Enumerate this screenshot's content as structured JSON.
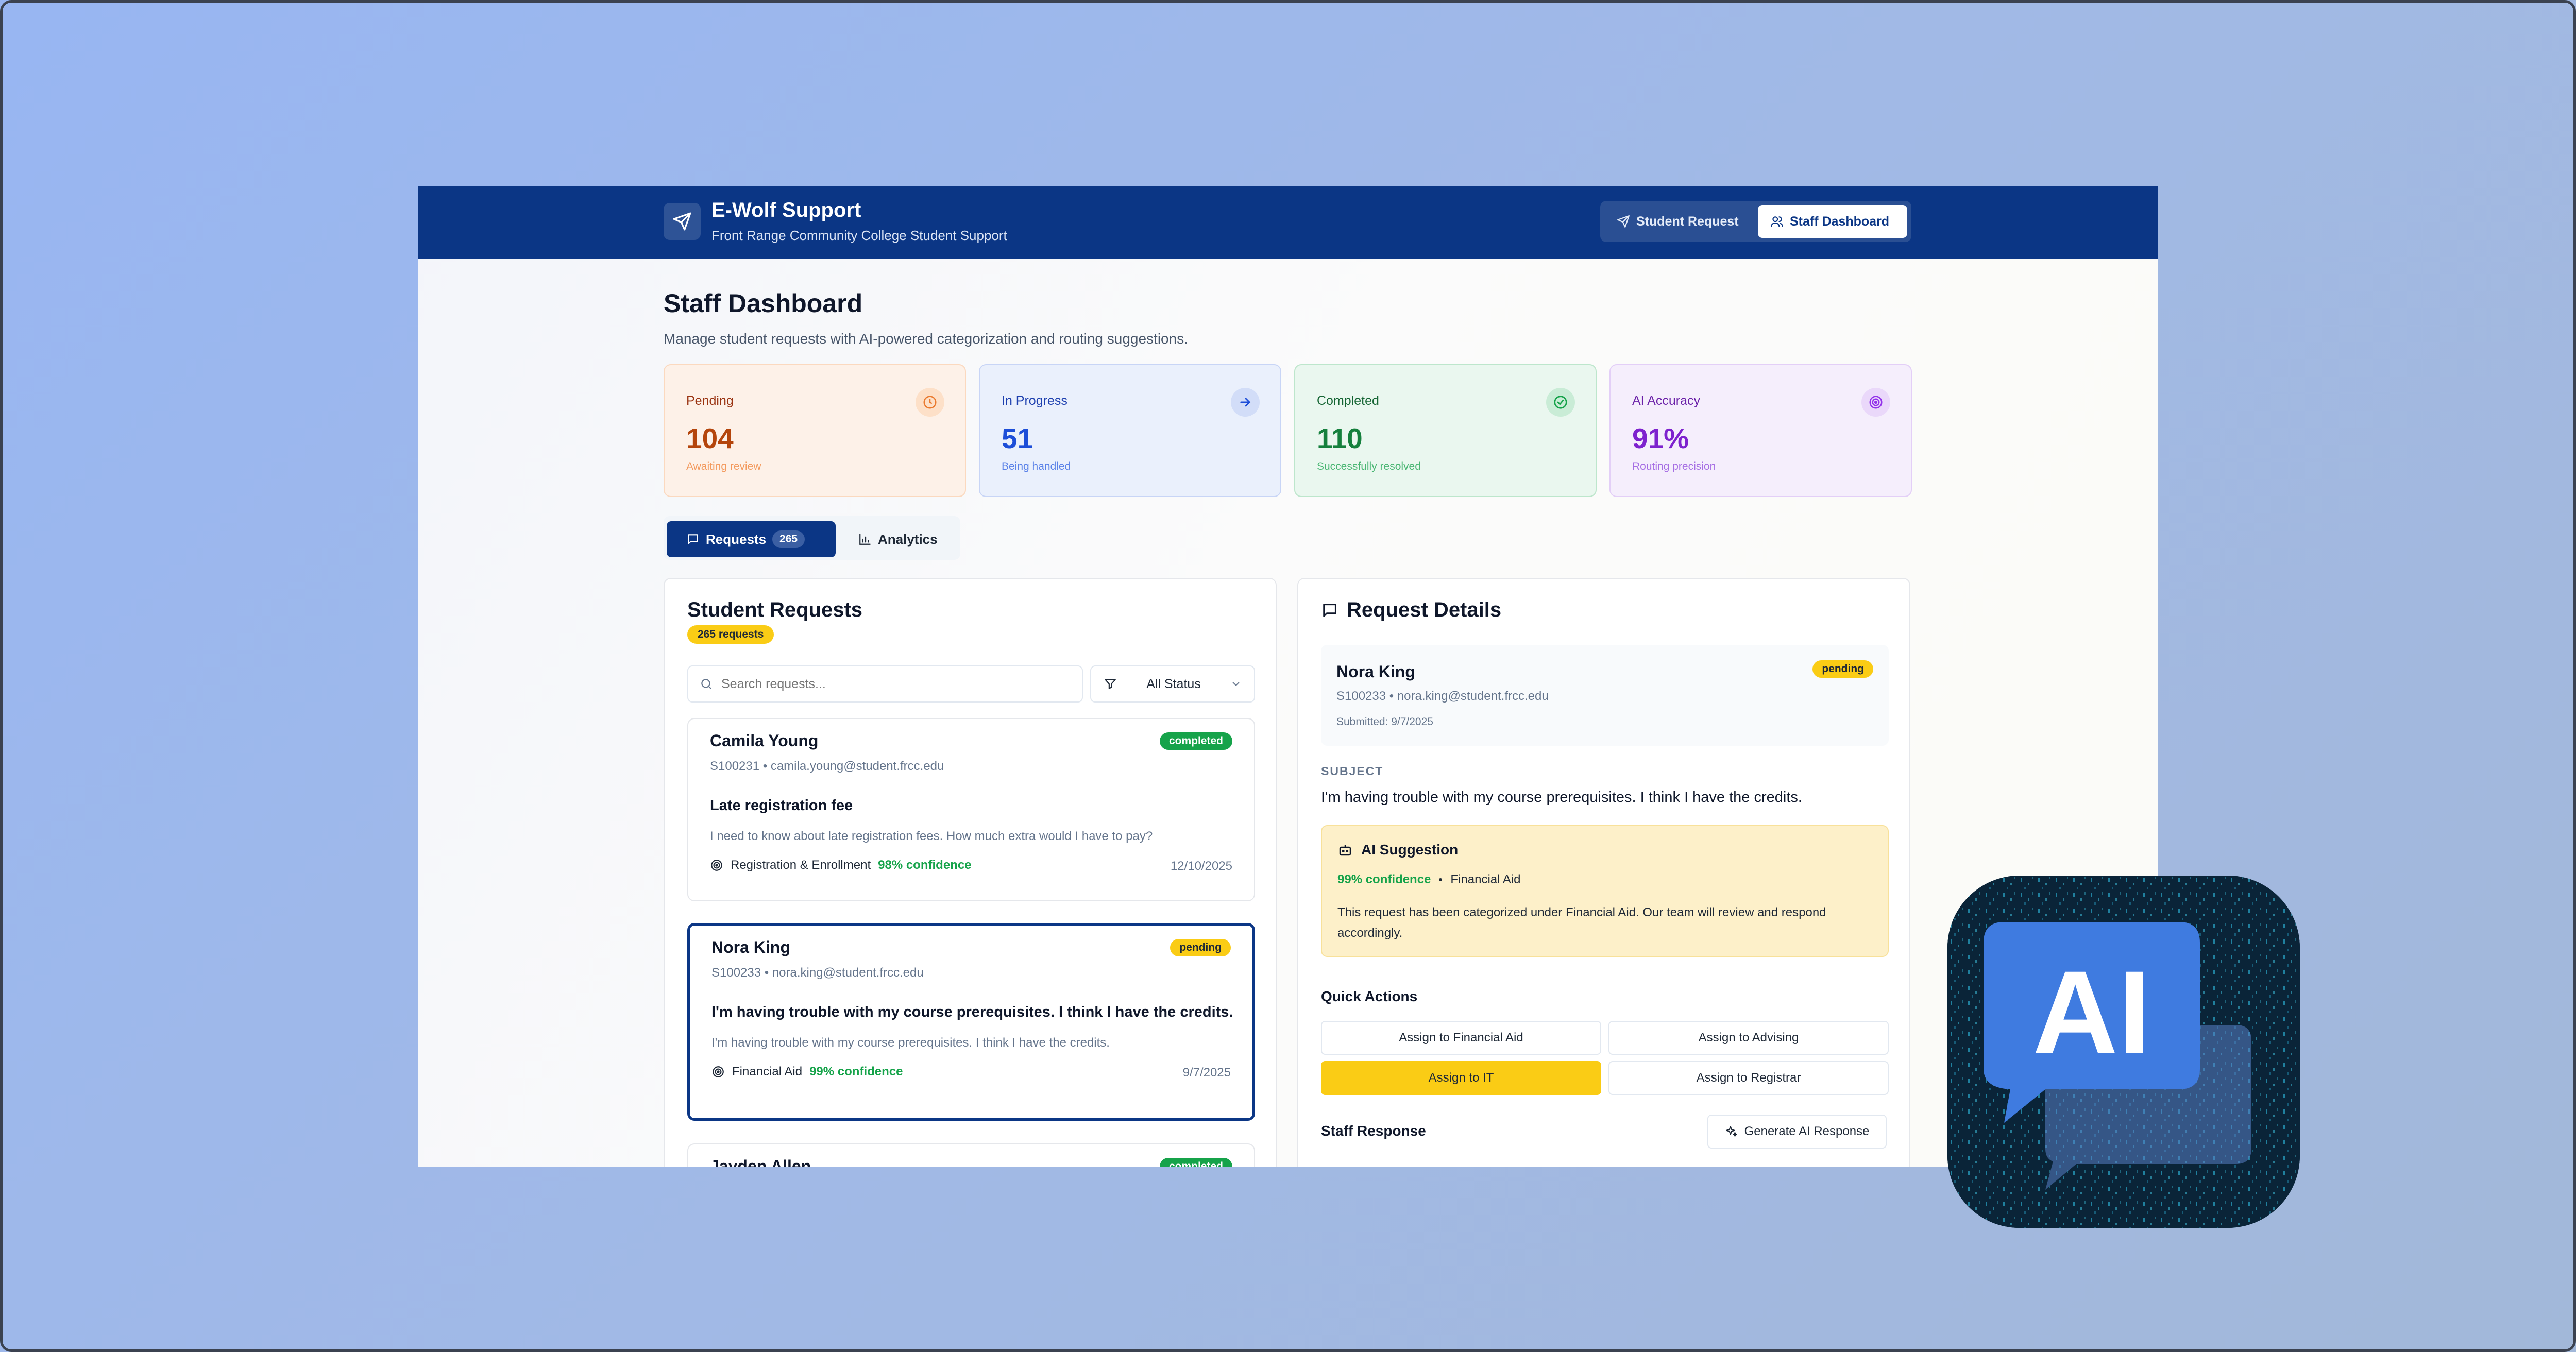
{
  "header": {
    "title": "E-Wolf Support",
    "subtitle": "Front Range Community College Student Support",
    "nav": {
      "student_request": "Student Request",
      "staff_dashboard": "Staff Dashboard"
    }
  },
  "page": {
    "title": "Staff Dashboard",
    "subtitle": "Manage student requests with AI-powered categorization and routing suggestions."
  },
  "stats": {
    "pending": {
      "label": "Pending",
      "value": "104",
      "note": "Awaiting review"
    },
    "in_progress": {
      "label": "In Progress",
      "value": "51",
      "note": "Being handled"
    },
    "completed": {
      "label": "Completed",
      "value": "110",
      "note": "Successfully resolved"
    },
    "ai_accuracy": {
      "label": "AI Accuracy",
      "value": "91%",
      "note": "Routing precision"
    }
  },
  "tabs": {
    "requests": "Requests",
    "requests_count": "265",
    "analytics": "Analytics"
  },
  "requests_panel": {
    "title": "Student Requests",
    "count_badge": "265 requests",
    "search_placeholder": "Search requests...",
    "status_filter": "All Status",
    "items": [
      {
        "name": "Camila Young",
        "id_email": "S100231 • camila.young@student.frcc.edu",
        "status": "completed",
        "subject": "Late registration fee",
        "body": "I need to know about late registration fees. How much extra would I have to pay?",
        "category": "Registration & Enrollment",
        "confidence": "98% confidence",
        "date": "12/10/2025"
      },
      {
        "name": "Nora King",
        "id_email": "S100233 • nora.king@student.frcc.edu",
        "status": "pending",
        "subject": "I'm having trouble with my course prerequisites. I think I have the credits.",
        "body": "I'm having trouble with my course prerequisites. I think I have the credits.",
        "category": "Financial Aid",
        "confidence": "99% confidence",
        "date": "9/7/2025"
      },
      {
        "name": "Jayden Allen",
        "status": "completed"
      }
    ]
  },
  "details_panel": {
    "title": "Request Details",
    "name": "Nora King",
    "id_email": "S100233 • nora.king@student.frcc.edu",
    "submitted": "Submitted: 9/7/2025",
    "status": "pending",
    "subject_label": "SUBJECT",
    "subject": "I'm having trouble with my course prerequisites. I think I have the credits.",
    "ai_suggestion": {
      "title": "AI Suggestion",
      "confidence": "99% confidence",
      "category": "Financial Aid",
      "text": "This request has been categorized under Financial Aid. Our team will review and respond accordingly."
    },
    "quick_actions_label": "Quick Actions",
    "quick_actions": [
      "Assign to Financial Aid",
      "Assign to Advising",
      "Assign to IT",
      "Assign to Registrar"
    ],
    "staff_response_label": "Staff Response",
    "generate_button": "Generate AI Response"
  },
  "app_icon": {
    "text": "AI"
  },
  "colors": {
    "brand_navy": "#0b3685",
    "accent_yellow": "#facc15",
    "success_green": "#16a34a"
  }
}
